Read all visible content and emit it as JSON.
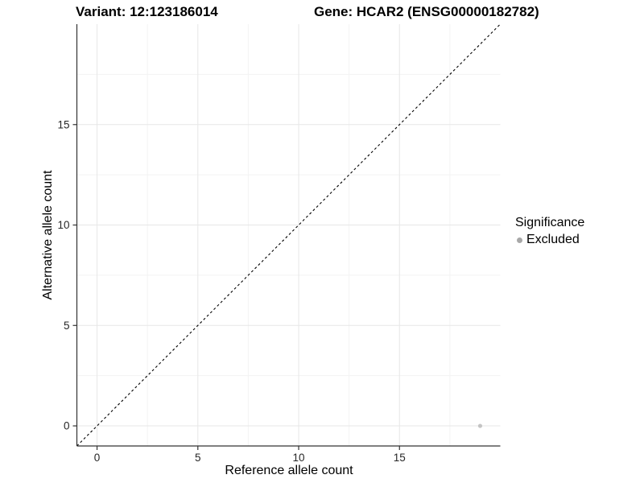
{
  "chart_data": {
    "type": "scatter",
    "title_left": "Variant: 12:123186014",
    "title_right": "Gene: HCAR2 (ENSG00000182782)",
    "xlabel": "Reference allele count",
    "ylabel": "Alternative allele count",
    "xlim": [
      -1,
      20
    ],
    "ylim": [
      -1,
      20
    ],
    "xticks": [
      0,
      5,
      10,
      15
    ],
    "yticks": [
      0,
      5,
      10,
      15
    ],
    "minor_xticks": [
      2.5,
      7.5,
      12.5,
      17.5
    ],
    "minor_yticks": [
      2.5,
      7.5,
      12.5,
      17.5
    ],
    "grid": true,
    "reference_line": {
      "type": "identity",
      "slope": 1,
      "intercept": 0,
      "style": "dashed",
      "color": "#000000"
    },
    "series": [
      {
        "name": "Excluded",
        "color": "#c4c4c4",
        "points": [
          {
            "x": 19,
            "y": 0
          }
        ]
      }
    ],
    "legend": {
      "title": "Significance",
      "position": "right",
      "entries": [
        {
          "label": "Excluded",
          "color": "#a8a8a8"
        }
      ]
    },
    "colors": {
      "background": "#ffffff",
      "grid_major": "#e7e7e7",
      "grid_minor": "#f3f3f3",
      "axis_line": "#333333",
      "tick_mark": "#333333",
      "tick_text": "#262626"
    }
  }
}
